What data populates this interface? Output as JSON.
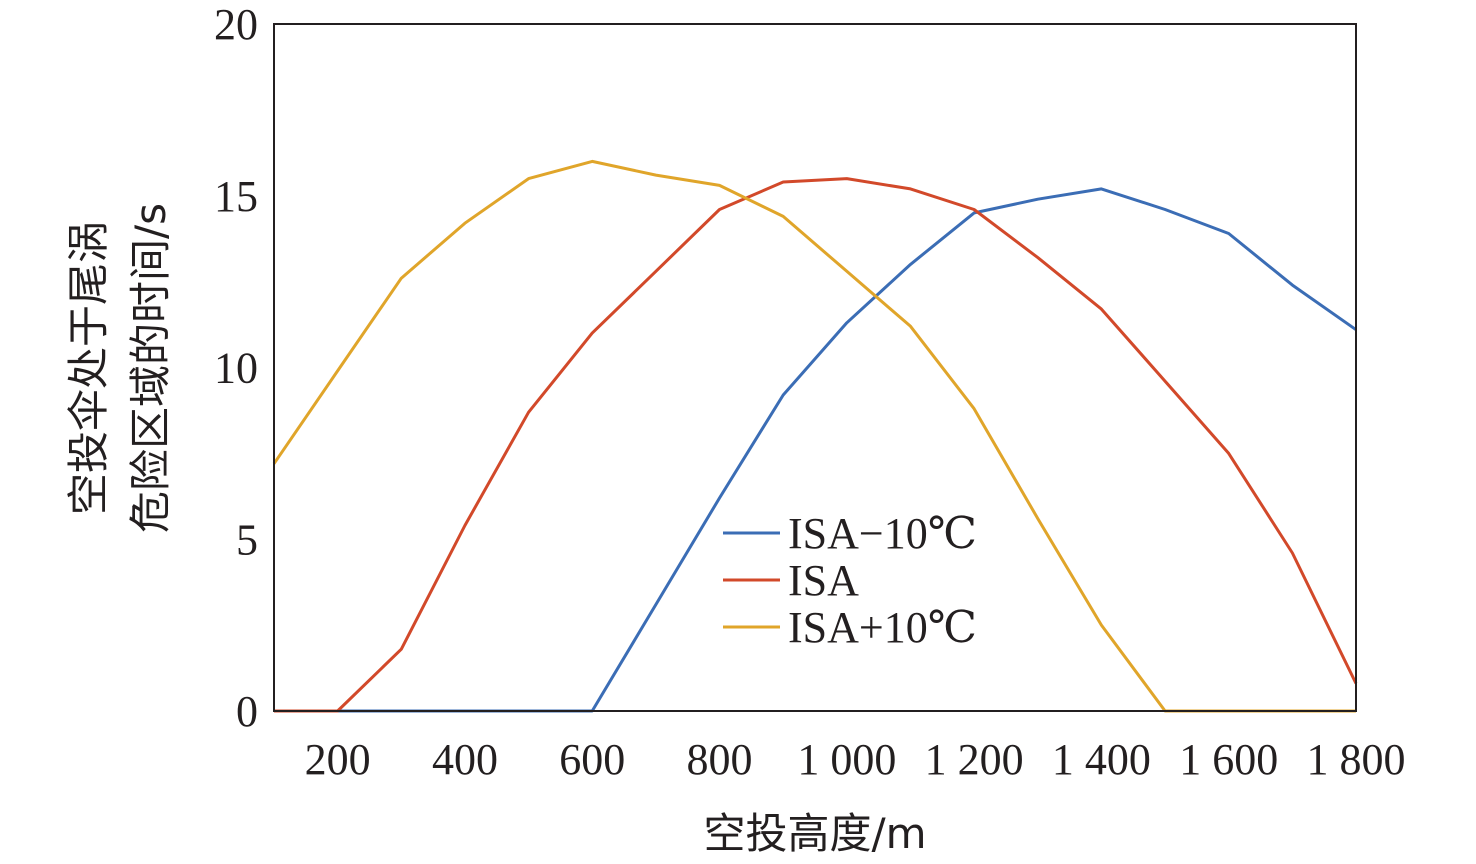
{
  "chart_data": {
    "type": "line",
    "xlabel": "空投高度/m",
    "ylabel_lines": [
      "空投伞处于尾涡",
      "危险区域的时间/s"
    ],
    "xlim": [
      100,
      1800
    ],
    "ylim": [
      0,
      20
    ],
    "xticks": [
      200,
      400,
      600,
      800,
      1000,
      1200,
      1400,
      1600,
      1800
    ],
    "xtick_labels": [
      "200",
      "400",
      "600",
      "800",
      "1 000",
      "1 200",
      "1 400",
      "1 600",
      "1 800"
    ],
    "yticks": [
      0,
      5,
      10,
      15,
      20
    ],
    "ytick_labels": [
      "0",
      "5",
      "10",
      "15",
      "20"
    ],
    "x": [
      100,
      200,
      300,
      400,
      500,
      600,
      700,
      800,
      900,
      1000,
      1100,
      1200,
      1300,
      1400,
      1500,
      1600,
      1700,
      1800
    ],
    "series": [
      {
        "name": "ISA−10℃",
        "color": "#3b6db5",
        "values": [
          0,
          0,
          0,
          0,
          0,
          0,
          3.1,
          6.2,
          9.2,
          11.3,
          13.0,
          14.5,
          14.9,
          15.2,
          14.6,
          13.9,
          12.4,
          11.1
        ]
      },
      {
        "name": "ISA",
        "color": "#d2492a",
        "values": [
          0,
          0,
          1.8,
          5.4,
          8.7,
          11.0,
          12.8,
          14.6,
          15.4,
          15.5,
          15.2,
          14.6,
          13.2,
          11.7,
          9.6,
          7.5,
          4.6,
          0.8
        ]
      },
      {
        "name": "ISA+10℃",
        "color": "#e0a52a",
        "values": [
          7.2,
          9.9,
          12.6,
          14.2,
          15.5,
          16.0,
          15.6,
          15.3,
          14.4,
          12.8,
          11.2,
          8.8,
          5.6,
          2.5,
          0,
          0,
          0,
          0
        ]
      }
    ],
    "legend_position": "lower-center",
    "grid": false
  }
}
